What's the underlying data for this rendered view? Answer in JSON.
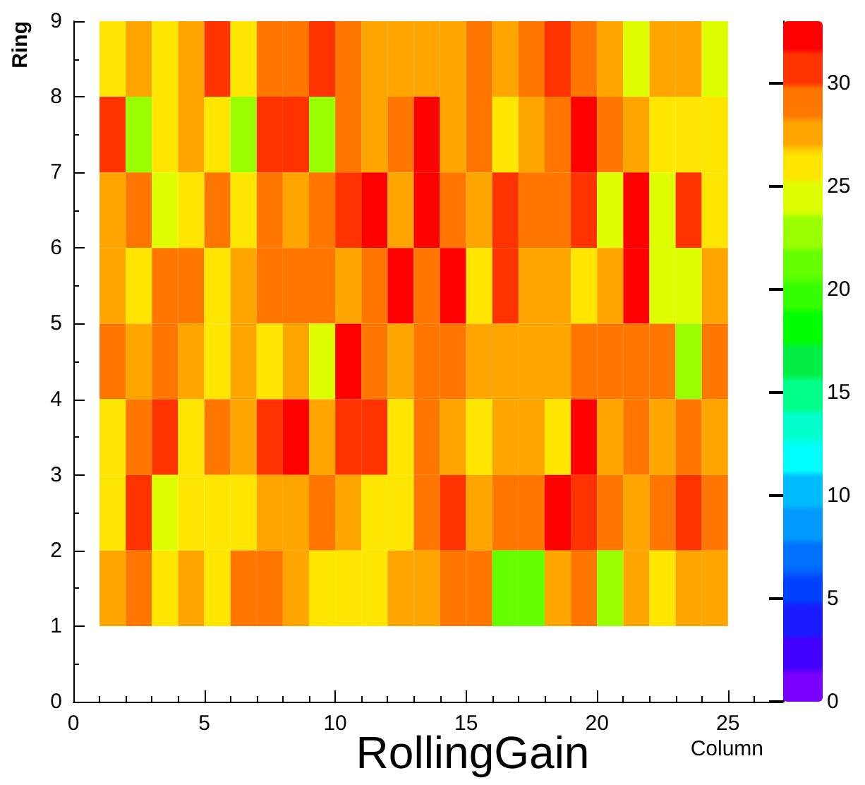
{
  "chart_data": {
    "type": "heatmap",
    "title": "RollingGain",
    "xlabel": "Column",
    "ylabel": "Ring",
    "x": [
      1.5,
      2.5,
      3.5,
      4.5,
      5.5,
      6.5,
      7.5,
      8.5,
      9.5,
      10.5,
      11.5,
      12.5,
      13.5,
      14.5,
      15.5,
      16.5,
      17.5,
      18.5,
      19.5,
      20.5,
      21.5,
      22.5,
      23.5,
      24.5
    ],
    "y": [
      8.5,
      7.5,
      6.5,
      5.5,
      4.5,
      3.5,
      2.5,
      1.5
    ],
    "cells": [
      [
        25.9,
        27.5,
        25.9,
        27.5,
        30.6,
        25.9,
        29.1,
        29.1,
        30.6,
        29.1,
        27.5,
        27.5,
        27.5,
        27.5,
        29.1,
        27.5,
        29.1,
        30.6,
        29.1,
        27.5,
        24.4,
        27.5,
        27.5,
        24.4
      ],
      [
        30.6,
        22.8,
        25.9,
        27.5,
        25.9,
        22.8,
        30.6,
        30.6,
        22.8,
        29.1,
        27.5,
        29.1,
        32.2,
        27.5,
        29.1,
        25.9,
        27.5,
        29.1,
        32.2,
        29.1,
        27.5,
        25.9,
        25.9,
        25.9
      ],
      [
        27.5,
        29.1,
        24.4,
        25.9,
        29.1,
        25.9,
        29.1,
        27.5,
        29.1,
        30.6,
        32.2,
        27.5,
        32.2,
        29.1,
        27.5,
        30.6,
        29.1,
        29.1,
        30.6,
        24.4,
        32.2,
        24.4,
        30.6,
        25.9
      ],
      [
        27.5,
        25.9,
        29.1,
        29.1,
        25.9,
        27.5,
        29.1,
        29.1,
        29.1,
        27.5,
        29.1,
        32.2,
        29.1,
        32.2,
        25.9,
        30.6,
        27.5,
        27.5,
        25.9,
        27.5,
        32.2,
        24.4,
        24.4,
        27.5
      ],
      [
        29.1,
        27.5,
        29.1,
        27.5,
        25.9,
        27.5,
        25.9,
        27.5,
        24.4,
        32.2,
        29.1,
        27.5,
        29.1,
        29.1,
        27.5,
        27.5,
        27.5,
        27.5,
        29.1,
        29.1,
        29.1,
        29.1,
        22.8,
        29.1
      ],
      [
        25.9,
        29.1,
        30.6,
        25.9,
        29.1,
        27.5,
        30.6,
        32.2,
        27.5,
        30.6,
        30.6,
        25.9,
        29.1,
        27.5,
        25.9,
        27.5,
        27.5,
        25.9,
        32.2,
        27.5,
        29.1,
        27.5,
        29.1,
        27.5
      ],
      [
        25.9,
        30.6,
        24.4,
        25.9,
        25.9,
        25.9,
        27.5,
        27.5,
        29.1,
        27.5,
        25.9,
        25.9,
        29.1,
        30.6,
        27.5,
        29.1,
        29.1,
        32.2,
        30.6,
        29.1,
        27.5,
        29.1,
        30.6,
        29.1
      ],
      [
        27.5,
        29.1,
        25.9,
        27.5,
        25.9,
        29.1,
        29.1,
        27.5,
        25.9,
        25.9,
        25.9,
        27.5,
        27.5,
        29.1,
        29.1,
        21.2,
        21.2,
        27.5,
        29.1,
        22.8,
        27.5,
        25.9,
        27.5,
        27.5
      ]
    ],
    "xlim": [
      0,
      27
    ],
    "xticks": [
      0,
      5,
      10,
      15,
      20,
      25
    ],
    "ylim": [
      0,
      9
    ],
    "yticks": [
      0,
      1,
      2,
      3,
      4,
      5,
      6,
      7,
      8,
      9
    ],
    "clim": [
      0,
      33
    ],
    "cticks": [
      0,
      5,
      10,
      15,
      20,
      25,
      30
    ],
    "grid": false
  }
}
